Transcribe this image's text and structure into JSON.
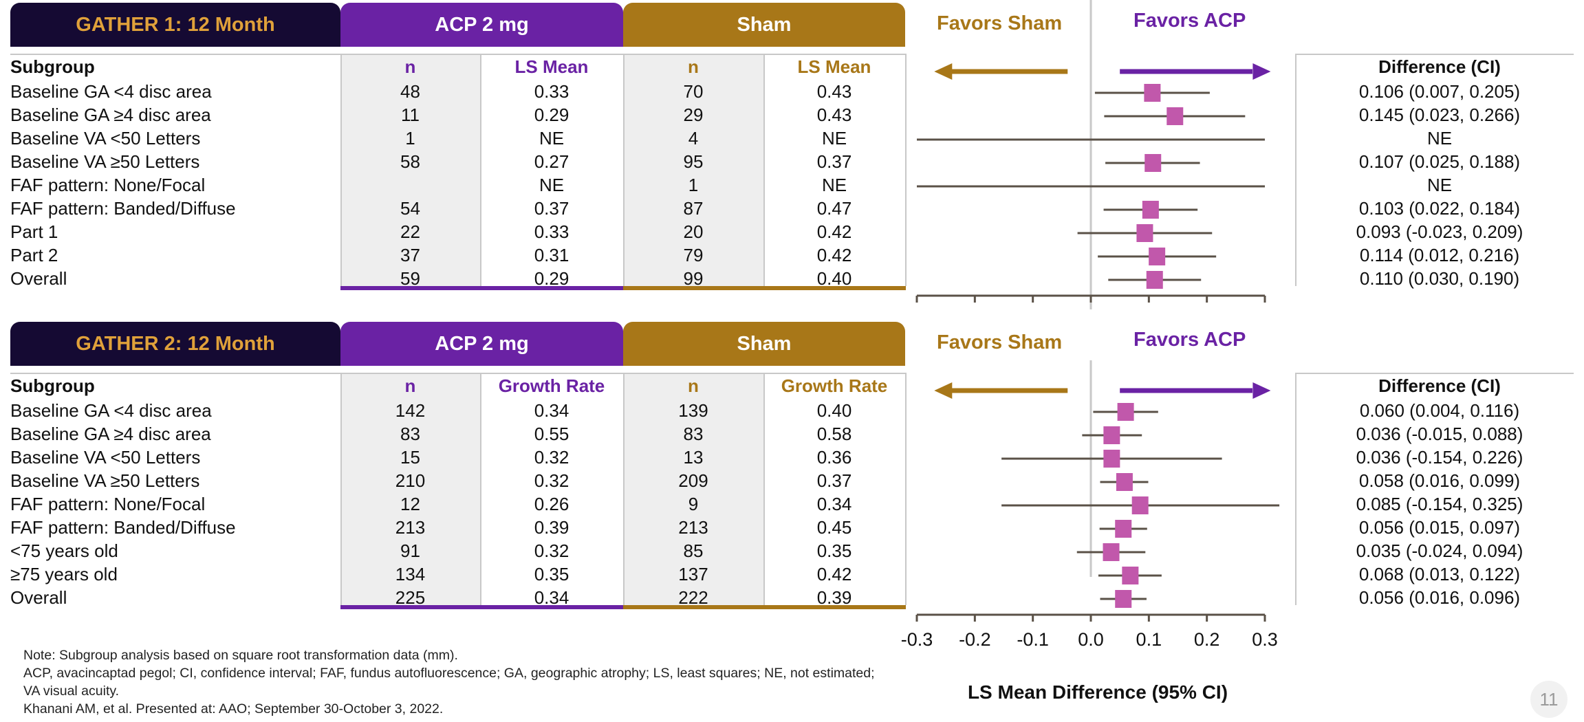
{
  "colors": {
    "navy": "#150a33",
    "purple": "#6a22a4",
    "gold": "#a87718",
    "title_text": "#e0a13a",
    "marker": "#c158ab",
    "ci_line": "#5a5147"
  },
  "table1": {
    "title": "GATHER 1: 12 Month",
    "acp_header": "ACP 2 mg",
    "sham_header": "Sham",
    "subgroup_header": "Subgroup",
    "acp_cols": [
      "n",
      "LS Mean"
    ],
    "sham_cols": [
      "n",
      "LS Mean"
    ],
    "diff_header": "Difference (CI)",
    "favors_sham": "Favors Sham",
    "favors_acp": "Favors ACP",
    "rows": [
      {
        "label": "Baseline GA <4 disc area",
        "acp_n": "48",
        "acp_val": "0.33",
        "sham_n": "70",
        "sham_val": "0.43",
        "diff": "0.106 (0.007, 0.205)"
      },
      {
        "label": "Baseline GA ≥4 disc area",
        "acp_n": "11",
        "acp_val": "0.29",
        "sham_n": "29",
        "sham_val": "0.43",
        "diff": "0.145 (0.023, 0.266)"
      },
      {
        "label": "Baseline VA <50 Letters",
        "acp_n": "1",
        "acp_val": "NE",
        "sham_n": "4",
        "sham_val": "NE",
        "diff": "NE"
      },
      {
        "label": "Baseline VA ≥50 Letters",
        "acp_n": "58",
        "acp_val": "0.27",
        "sham_n": "95",
        "sham_val": "0.37",
        "diff": "0.107 (0.025, 0.188)"
      },
      {
        "label": "FAF pattern: None/Focal",
        "acp_n": "",
        "acp_val": "NE",
        "sham_n": "1",
        "sham_val": "NE",
        "diff": "NE"
      },
      {
        "label": "FAF pattern: Banded/Diffuse",
        "acp_n": "54",
        "acp_val": "0.37",
        "sham_n": "87",
        "sham_val": "0.47",
        "diff": "0.103 (0.022, 0.184)"
      },
      {
        "label": "Part 1",
        "acp_n": "22",
        "acp_val": "0.33",
        "sham_n": "20",
        "sham_val": "0.42",
        "diff": "0.093 (-0.023, 0.209)"
      },
      {
        "label": "Part 2",
        "acp_n": "37",
        "acp_val": "0.31",
        "sham_n": "79",
        "sham_val": "0.42",
        "diff": "0.114 (0.012, 0.216)"
      },
      {
        "label": "Overall",
        "acp_n": "59",
        "acp_val": "0.29",
        "sham_n": "99",
        "sham_val": "0.40",
        "diff": "0.110 (0.030, 0.190)"
      }
    ]
  },
  "table2": {
    "title": "GATHER 2: 12 Month",
    "acp_header": "ACP 2 mg",
    "sham_header": "Sham",
    "subgroup_header": "Subgroup",
    "acp_cols": [
      "n",
      "Growth Rate"
    ],
    "sham_cols": [
      "n",
      "Growth Rate"
    ],
    "diff_header": "Difference (CI)",
    "favors_sham": "Favors Sham",
    "favors_acp": "Favors ACP",
    "rows": [
      {
        "label": "Baseline GA <4 disc area",
        "acp_n": "142",
        "acp_val": "0.34",
        "sham_n": "139",
        "sham_val": "0.40",
        "diff": "0.060 (0.004, 0.116)"
      },
      {
        "label": "Baseline GA ≥4 disc area",
        "acp_n": "83",
        "acp_val": "0.55",
        "sham_n": "83",
        "sham_val": "0.58",
        "diff": "0.036 (-0.015, 0.088)"
      },
      {
        "label": "Baseline VA <50 Letters",
        "acp_n": "15",
        "acp_val": "0.32",
        "sham_n": "13",
        "sham_val": "0.36",
        "diff": "0.036 (-0.154, 0.226)"
      },
      {
        "label": "Baseline VA ≥50 Letters",
        "acp_n": "210",
        "acp_val": "0.32",
        "sham_n": "209",
        "sham_val": "0.37",
        "diff": "0.058 (0.016, 0.099)"
      },
      {
        "label": "FAF pattern: None/Focal",
        "acp_n": "12",
        "acp_val": "0.26",
        "sham_n": "9",
        "sham_val": "0.34",
        "diff": "0.085 (-0.154, 0.325)"
      },
      {
        "label": "FAF pattern: Banded/Diffuse",
        "acp_n": "213",
        "acp_val": "0.39",
        "sham_n": "213",
        "sham_val": "0.45",
        "diff": "0.056 (0.015, 0.097)"
      },
      {
        "label": "<75 years old",
        "acp_n": "91",
        "acp_val": "0.32",
        "sham_n": "85",
        "sham_val": "0.35",
        "diff": "0.035 (-0.024, 0.094)"
      },
      {
        "label": "≥75 years old",
        "acp_n": "134",
        "acp_val": "0.35",
        "sham_n": "137",
        "sham_val": "0.42",
        "diff": "0.068 (0.013, 0.122)"
      },
      {
        "label": "Overall",
        "acp_n": "225",
        "acp_val": "0.34",
        "sham_n": "222",
        "sham_val": "0.39",
        "diff": "0.056 (0.016, 0.096)"
      }
    ]
  },
  "chart_data": [
    {
      "type": "forest",
      "title": "GATHER 1: 12 Month",
      "xlim": [
        -0.3,
        0.3
      ],
      "reference_line": 0,
      "categories": [
        "Baseline GA <4 disc area",
        "Baseline GA ≥4 disc area",
        "Baseline VA <50 Letters",
        "Baseline VA ≥50 Letters",
        "FAF pattern: None/Focal",
        "FAF pattern: Banded/Diffuse",
        "Part 1",
        "Part 2",
        "Overall"
      ],
      "estimates": [
        0.106,
        0.145,
        null,
        0.107,
        null,
        0.103,
        0.093,
        0.114,
        0.11
      ],
      "ci_lower": [
        0.007,
        0.023,
        -0.3,
        0.025,
        -0.3,
        0.022,
        -0.023,
        0.012,
        0.03
      ],
      "ci_upper": [
        0.205,
        0.266,
        0.3,
        0.188,
        0.3,
        0.184,
        0.209,
        0.216,
        0.19
      ]
    },
    {
      "type": "forest",
      "title": "GATHER 2: 12 Month",
      "xlim": [
        -0.3,
        0.3
      ],
      "reference_line": 0,
      "xlabel": "LS Mean Difference (95% CI)",
      "xticks": [
        "-0.3",
        "-0.2",
        "-0.1",
        "0.0",
        "0.1",
        "0.2",
        "0.3"
      ],
      "categories": [
        "Baseline GA <4 disc area",
        "Baseline GA ≥4 disc area",
        "Baseline VA <50 Letters",
        "Baseline VA ≥50 Letters",
        "FAF pattern: None/Focal",
        "FAF pattern: Banded/Diffuse",
        "<75 years old",
        "≥75 years old",
        "Overall"
      ],
      "estimates": [
        0.06,
        0.036,
        0.036,
        0.058,
        0.085,
        0.056,
        0.035,
        0.068,
        0.056
      ],
      "ci_lower": [
        0.004,
        -0.015,
        -0.154,
        0.016,
        -0.154,
        0.015,
        -0.024,
        0.013,
        0.016
      ],
      "ci_upper": [
        0.116,
        0.088,
        0.226,
        0.099,
        0.325,
        0.097,
        0.094,
        0.122,
        0.096
      ]
    }
  ],
  "notes": [
    "Note: Subgroup analysis based on square root transformation data (mm).",
    "ACP, avacincaptad pegol; CI, confidence interval; FAF, fundus autofluorescence; GA, geographic atrophy; LS, least squares; NE, not estimated; VA visual acuity.",
    "Khanani AM, et al. Presented at: AAO; September 30-October 3, 2022."
  ],
  "page_number": "11"
}
